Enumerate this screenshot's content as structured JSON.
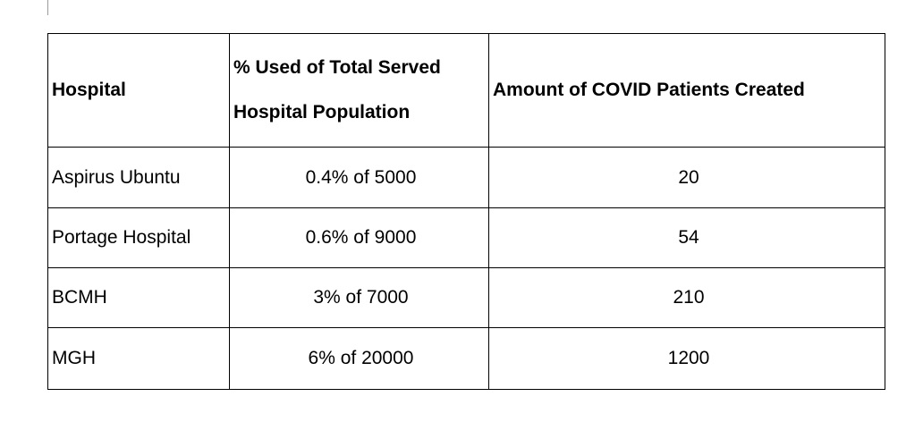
{
  "table": {
    "headers": {
      "hospital": "Hospital",
      "percent_line1": "% Used of Total Served",
      "percent_line2": "Hospital Population",
      "amount": "Amount of COVID Patients Created"
    },
    "rows": [
      {
        "hospital": "Aspirus Ubuntu",
        "percent": "0.4% of 5000",
        "amount": "20"
      },
      {
        "hospital": "Portage Hospital",
        "percent": "0.6% of 9000",
        "amount": "54"
      },
      {
        "hospital": "BCMH",
        "percent": "3% of 7000",
        "amount": "210"
      },
      {
        "hospital": "MGH",
        "percent": "6% of 20000",
        "amount": "1200"
      }
    ]
  }
}
